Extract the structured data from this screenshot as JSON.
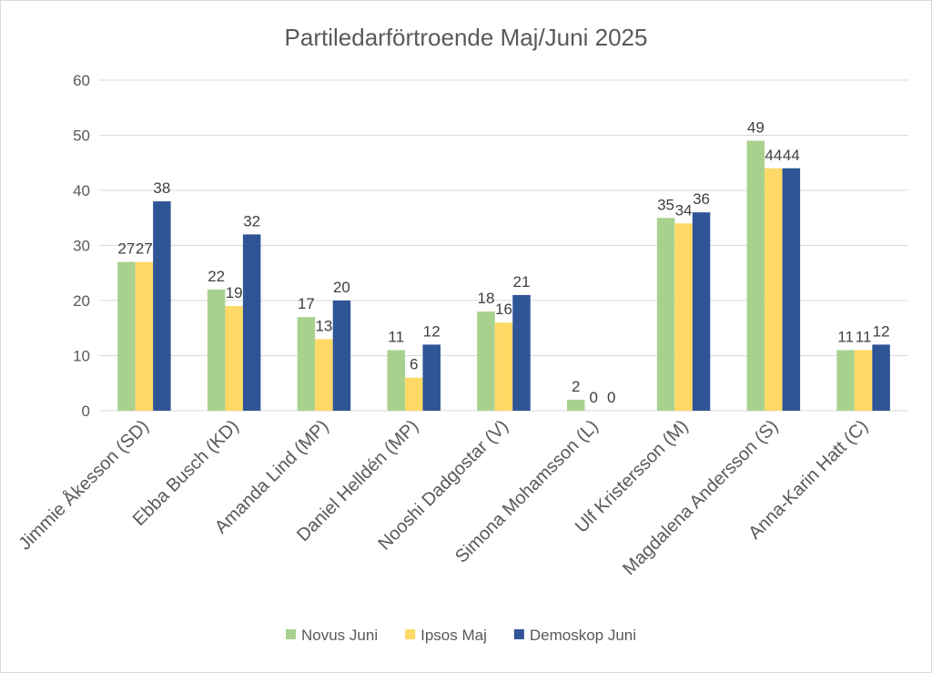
{
  "chart_data": {
    "type": "bar",
    "title": "Partiledarförtroende Maj/Juni 2025",
    "xlabel": "",
    "ylabel": "",
    "ylim": [
      0,
      60
    ],
    "yticks": [
      0,
      10,
      20,
      30,
      40,
      50,
      60
    ],
    "grid": true,
    "legend_position": "bottom",
    "categories": [
      "Jimmie Åkesson (SD)",
      "Ebba Busch (KD)",
      "Amanda Lind (MP)",
      "Daniel Helldén (MP)",
      "Nooshi Dadgostar (V)",
      "Simona Mohamsson (L)",
      "Ulf Kristersson (M)",
      "Magdalena Andersson (S)",
      "Anna-Karin Hatt (C)"
    ],
    "series": [
      {
        "name": "Novus Juni",
        "color": "#a9d18e",
        "values": [
          27,
          22,
          17,
          11,
          18,
          2,
          35,
          49,
          11
        ]
      },
      {
        "name": "Ipsos Maj",
        "color": "#ffd966",
        "values": [
          27,
          19,
          13,
          6,
          16,
          0,
          34,
          44,
          11
        ]
      },
      {
        "name": "Demoskop Juni",
        "color": "#2f5597",
        "values": [
          38,
          32,
          20,
          12,
          21,
          0,
          36,
          44,
          12
        ]
      }
    ]
  }
}
